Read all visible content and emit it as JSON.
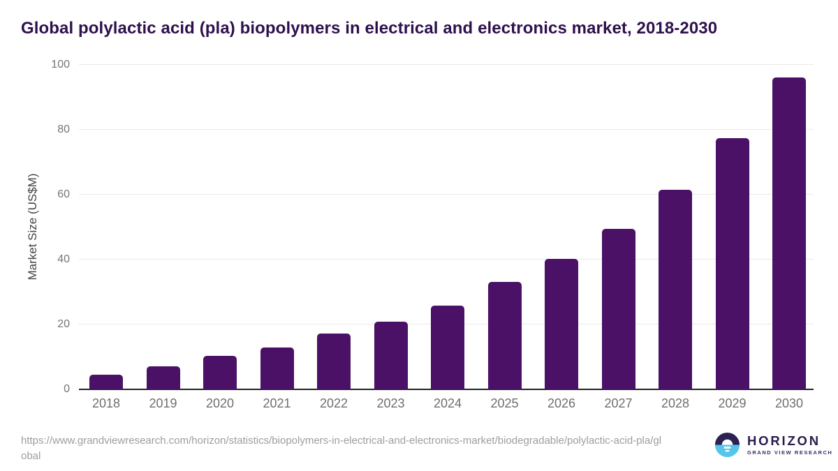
{
  "title": "Global polylactic acid (pla) biopolymers in electrical and electronics market, 2018-2030",
  "chart_data": {
    "type": "bar",
    "title": "Global polylactic acid (pla) biopolymers in electrical and electronics market, 2018-2030",
    "categories": [
      "2018",
      "2019",
      "2020",
      "2021",
      "2022",
      "2023",
      "2024",
      "2025",
      "2026",
      "2027",
      "2028",
      "2029",
      "2030"
    ],
    "values": [
      4.6,
      7.1,
      10.4,
      12.9,
      17.1,
      20.8,
      25.8,
      33.0,
      40.1,
      49.5,
      61.4,
      77.4,
      96.1
    ],
    "xlabel": "",
    "ylabel": "Market Size (US$M)",
    "ylim": [
      0,
      100
    ],
    "yticks": [
      0,
      20,
      40,
      60,
      80,
      100
    ],
    "grid": true,
    "legend": "none",
    "bar_color": "#4a1166"
  },
  "footer": {
    "source_url": "https://www.grandviewresearch.com/horizon/statistics/biopolymers-in-electrical-and-electronics-market/biodegradable/polylactic-acid-pla/global",
    "logo": {
      "brand": "HORIZON",
      "subbrand": "GRAND VIEW RESEARCH",
      "icon": "horizon-sunrise-circle",
      "icon_colors": {
        "top": "#2b2152",
        "bottom": "#55c6ea"
      }
    }
  },
  "colors": {
    "bar": "#4a1166",
    "title_text": "#2e104d",
    "axis_tick_text": "#757575",
    "x_tick_text": "#6e6e6e",
    "y_axis_title_text": "#424242",
    "gridline": "#e9e9e9",
    "axis_line": "#212121",
    "source_text": "#9d9d9d"
  }
}
